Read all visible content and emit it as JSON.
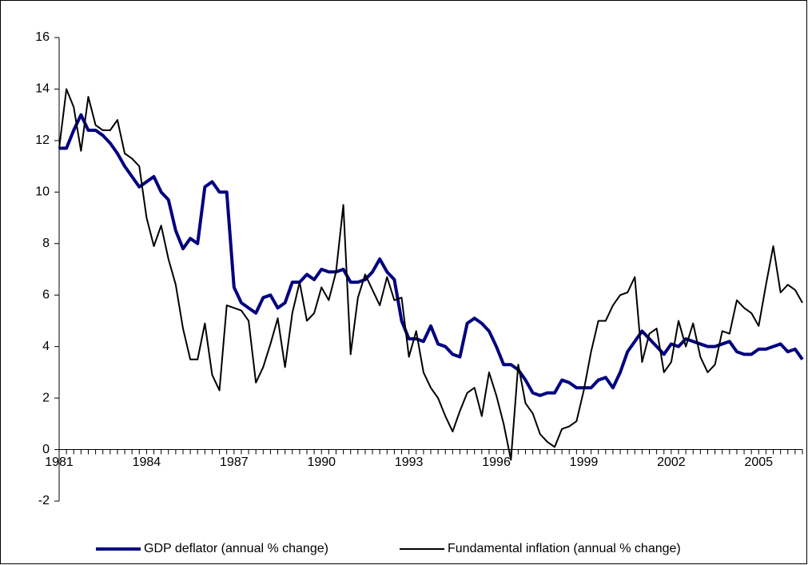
{
  "chart_data": {
    "type": "line",
    "categories": [
      "1981",
      null,
      null,
      null,
      null,
      null,
      null,
      null,
      null,
      null,
      null,
      null,
      "1984",
      null,
      null,
      null,
      null,
      null,
      null,
      null,
      null,
      null,
      null,
      null,
      "1987",
      null,
      null,
      null,
      null,
      null,
      null,
      null,
      null,
      null,
      null,
      null,
      "1990",
      null,
      null,
      null,
      null,
      null,
      null,
      null,
      null,
      null,
      null,
      null,
      "1993",
      null,
      null,
      null,
      null,
      null,
      null,
      null,
      null,
      null,
      null,
      null,
      "1996",
      null,
      null,
      null,
      null,
      null,
      null,
      null,
      null,
      null,
      null,
      null,
      "1999",
      null,
      null,
      null,
      null,
      null,
      null,
      null,
      null,
      null,
      null,
      null,
      "2002",
      null,
      null,
      null,
      null,
      null,
      null,
      null,
      null,
      null,
      null,
      null,
      "2005",
      null,
      null,
      null,
      null,
      null,
      null
    ],
    "series": [
      {
        "name": "GDP deflator (annual % change)",
        "color": "#000080",
        "width": 4,
        "values": [
          11.7,
          11.7,
          12.4,
          13.0,
          12.4,
          12.4,
          12.2,
          11.9,
          11.5,
          11.0,
          10.6,
          10.2,
          10.4,
          10.6,
          10.0,
          9.7,
          8.5,
          7.8,
          8.2,
          8.0,
          10.2,
          10.4,
          10.0,
          10.0,
          6.3,
          5.7,
          5.5,
          5.3,
          5.9,
          6.0,
          5.5,
          5.7,
          6.5,
          6.5,
          6.8,
          6.6,
          7.0,
          6.9,
          6.9,
          7.0,
          6.5,
          6.5,
          6.6,
          6.9,
          7.4,
          6.9,
          6.6,
          5.0,
          4.3,
          4.3,
          4.2,
          4.8,
          4.1,
          4.0,
          3.7,
          3.6,
          4.9,
          5.1,
          4.9,
          4.6,
          4.0,
          3.3,
          3.3,
          3.1,
          2.7,
          2.2,
          2.1,
          2.2,
          2.2,
          2.7,
          2.6,
          2.4,
          2.4,
          2.4,
          2.7,
          2.8,
          2.4,
          3.0,
          3.8,
          4.2,
          4.6,
          4.3,
          4.0,
          3.7,
          4.1,
          4.0,
          4.3,
          4.2,
          4.1,
          4.0,
          4.0,
          4.1,
          4.2,
          3.8,
          3.7,
          3.7,
          3.9,
          3.9,
          4.0,
          4.1,
          3.8,
          3.9,
          3.5
        ]
      },
      {
        "name": "Fundamental inflation (annual % change)",
        "color": "#000000",
        "width": 2,
        "values": [
          11.7,
          14.0,
          13.3,
          11.6,
          13.7,
          12.6,
          12.4,
          12.4,
          12.8,
          11.5,
          11.3,
          11.0,
          9.0,
          7.9,
          8.7,
          7.4,
          6.4,
          4.7,
          3.5,
          3.5,
          4.9,
          2.9,
          2.3,
          5.6,
          5.5,
          5.4,
          5.0,
          2.6,
          3.2,
          4.1,
          5.1,
          3.2,
          5.3,
          6.5,
          5.0,
          5.3,
          6.3,
          5.8,
          6.9,
          9.5,
          3.7,
          5.9,
          6.8,
          6.2,
          5.6,
          6.7,
          5.8,
          5.9,
          3.6,
          4.6,
          3.0,
          2.4,
          2.0,
          1.3,
          0.7,
          1.5,
          2.2,
          2.4,
          1.3,
          3.0,
          2.1,
          1.0,
          -0.4,
          3.3,
          1.8,
          1.4,
          0.6,
          0.3,
          0.1,
          0.8,
          0.9,
          1.1,
          2.3,
          3.8,
          5.0,
          5.0,
          5.6,
          6.0,
          6.1,
          6.7,
          3.4,
          4.5,
          4.7,
          3.0,
          3.4,
          5.0,
          4.0,
          4.9,
          3.6,
          3.0,
          3.3,
          4.6,
          4.5,
          5.8,
          5.5,
          5.3,
          4.8,
          6.4,
          7.9,
          6.1,
          6.4,
          6.2,
          5.7
        ]
      }
    ],
    "ylim": [
      -2,
      16
    ],
    "yticks": [
      -2,
      0,
      2,
      4,
      6,
      8,
      10,
      12,
      14,
      16
    ],
    "grid": false,
    "legend": "bottom"
  }
}
